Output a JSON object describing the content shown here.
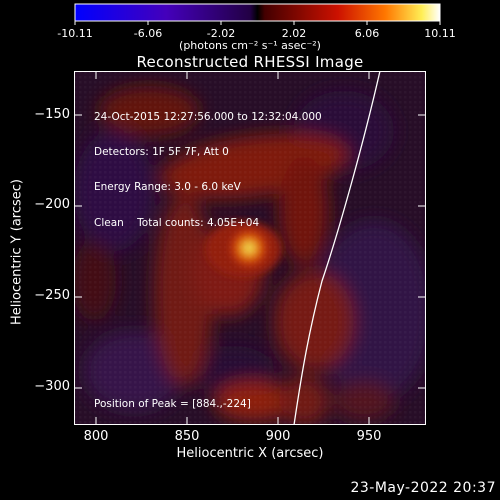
{
  "colorbar": {
    "ticks": [
      "-10.11",
      "-6.06",
      "-2.02",
      "2.02",
      "6.06",
      "10.11"
    ],
    "units": "(photons cm⁻² s⁻¹ asec⁻²)"
  },
  "chart_data": {
    "type": "heatmap",
    "title": "Reconstructed RHESSI Image",
    "xlabel": "Heliocentric X (arcsec)",
    "ylabel": "Heliocentric Y (arcsec)",
    "xlim": [
      790,
      983
    ],
    "ylim": [
      -320,
      -125
    ],
    "x_ticks": [
      800,
      850,
      900,
      950
    ],
    "y_ticks": [
      -150,
      -200,
      -250,
      -300
    ],
    "colorbar_range": [
      -10.11,
      10.11
    ],
    "peak": [
      884,
      -224
    ],
    "annotations": [
      "24-Oct-2015 12:27:56.000 to 12:32:04.000",
      "Detectors: 1F 5F 7F, Att 0",
      "Energy Range: 3.0 - 6.0 keV",
      "Clean    Total counts: 4.05E+04"
    ],
    "peak_label": "Position of Peak = [884.,-224]"
  },
  "footer": {
    "date": "23-May-2022 20:37"
  }
}
